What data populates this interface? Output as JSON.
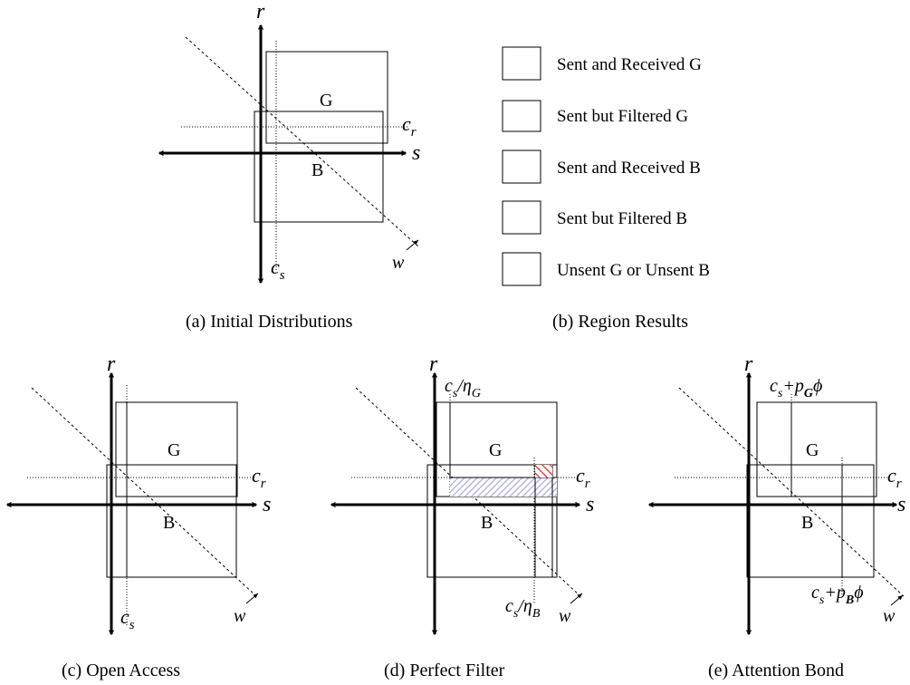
{
  "colors": {
    "good": "#2b2bc8",
    "good_light": "#a8a8e0",
    "bad": "#e8262a",
    "bad_light": "#f4a8a8"
  },
  "labels": {
    "axis_r": "r",
    "axis_s": "s",
    "axis_w": "w",
    "region_g": "G",
    "region_b": "B",
    "c_r_base": "c",
    "c_r_sub": "r",
    "c_s_base": "c",
    "c_s_sub": "s",
    "eta_g_text": "/η",
    "eta_g_sub": "G",
    "eta_b_text": "/η",
    "eta_b_sub": "B",
    "plus_pg_text": "+p",
    "plus_pg_sub": "G",
    "plus_pb_text": "+p",
    "plus_pb_sub": "B",
    "phi": "ϕ"
  },
  "legend": [
    {
      "label": "Sent and Received G",
      "swatch": "good-full"
    },
    {
      "label": "Sent but Filtered G",
      "swatch": "good-light"
    },
    {
      "label": "Sent and Received B",
      "swatch": "bad-full"
    },
    {
      "label": "Sent but Filtered B",
      "swatch": "bad-light"
    },
    {
      "label": "Unsent G or Unsent B",
      "swatch": "empty"
    }
  ],
  "captions": {
    "a": "(a)  Initial Distributions",
    "b": "(b)  Region Results",
    "c": "(c)  Open Access",
    "d": "(d)  Perfect Filter",
    "e": "(e)  Attention Bond"
  }
}
